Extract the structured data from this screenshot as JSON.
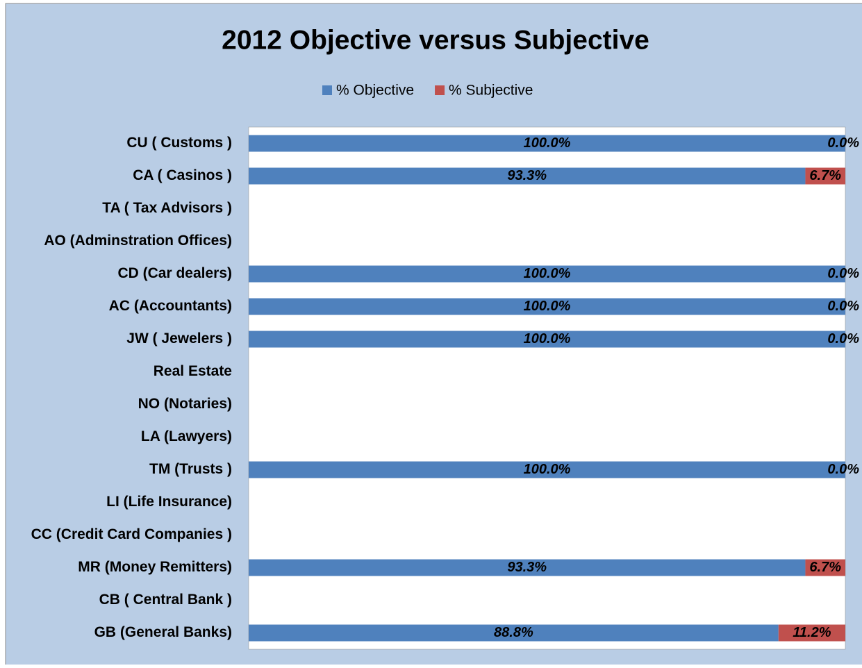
{
  "chart_data": {
    "type": "bar",
    "orientation": "horizontal",
    "stacked": true,
    "title": "2012 Objective versus Subjective",
    "categories": [
      "CU ( Customs )",
      "CA ( Casinos )",
      "TA ( Tax Advisors )",
      "AO (Adminstration Offices)",
      "CD (Car dealers)",
      "AC (Accountants)",
      "JW ( Jewelers )",
      "Real Estate",
      "NO (Notaries)",
      "LA (Lawyers)",
      "TM (Trusts )",
      "LI (Life Insurance)",
      "CC (Credit Card Companies )",
      "MR (Money Remitters)",
      "CB ( Central Bank )",
      "GB (General Banks)"
    ],
    "series": [
      {
        "name": "% Objective",
        "color": "#4f81bd",
        "values": [
          100,
          93.3,
          null,
          null,
          100,
          100,
          100,
          null,
          null,
          null,
          100,
          null,
          null,
          93.3,
          null,
          88.8
        ],
        "value_labels": [
          "100.0%",
          "93.3%",
          null,
          null,
          "100.0%",
          "100.0%",
          "100.0%",
          null,
          null,
          null,
          "100.0%",
          null,
          null,
          "93.3%",
          null,
          "88.8%"
        ]
      },
      {
        "name": "% Subjective",
        "color": "#c0504d",
        "values": [
          0,
          6.7,
          null,
          null,
          0,
          0,
          0,
          null,
          null,
          null,
          0,
          null,
          null,
          6.7,
          null,
          11.2
        ],
        "value_labels": [
          "0.0%",
          "6.7%",
          null,
          null,
          "0.0%",
          "0.0%",
          "0.0%",
          null,
          null,
          null,
          "0.0%",
          null,
          null,
          "6.7%",
          null,
          "11.2%"
        ]
      }
    ],
    "xlim": [
      0,
      100
    ],
    "legend": "top"
  }
}
